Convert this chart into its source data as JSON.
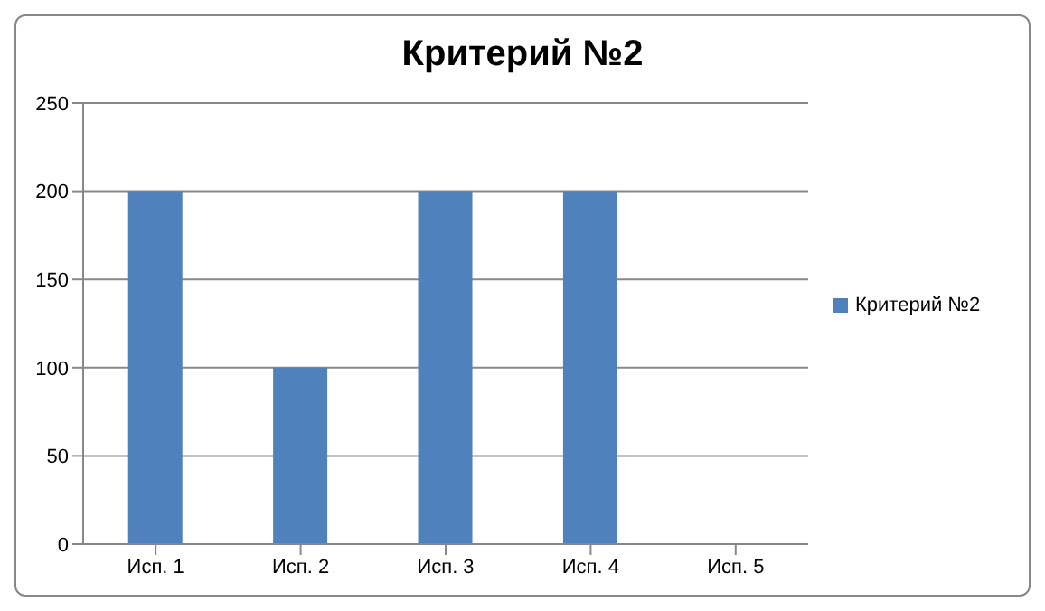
{
  "chart_data": {
    "type": "bar",
    "title": "Критерий №2",
    "categories": [
      "Исп. 1",
      "Исп. 2",
      "Исп. 3",
      "Исп. 4",
      "Исп. 5"
    ],
    "series": [
      {
        "name": "Критерий №2",
        "color": "#4f81bd",
        "values": [
          200,
          100,
          200,
          200,
          0
        ]
      }
    ],
    "ylim": [
      0,
      250
    ],
    "yticks": [
      0,
      50,
      100,
      150,
      200,
      250
    ],
    "grid": "y",
    "legend": "right"
  }
}
